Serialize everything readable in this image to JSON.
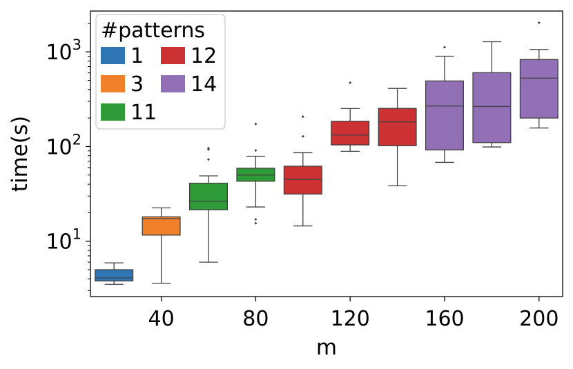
{
  "chart_data": {
    "type": "boxplot",
    "title": "",
    "xlabel": "m",
    "ylabel": "time(s)",
    "yscale": "log",
    "ylim": [
      2.6,
      2700
    ],
    "yticks": [
      {
        "value": 10,
        "base": "10",
        "exp": "1"
      },
      {
        "value": 100,
        "base": "10",
        "exp": "2"
      },
      {
        "value": 1000,
        "base": "10",
        "exp": "3"
      }
    ],
    "categories": [
      "20",
      "40",
      "60",
      "80",
      "100",
      "120",
      "140",
      "160",
      "180",
      "200"
    ],
    "xtick_labels": [
      {
        "category_index": 1,
        "label": "40"
      },
      {
        "category_index": 3,
        "label": "80"
      },
      {
        "category_index": 5,
        "label": "120"
      },
      {
        "category_index": 7,
        "label": "160"
      },
      {
        "category_index": 9,
        "label": "200"
      }
    ],
    "legend": {
      "title": "#patterns",
      "location": "upper-left",
      "entries": [
        {
          "label": "1",
          "color": "#2f77b4"
        },
        {
          "label": "3",
          "color": "#f0802a"
        },
        {
          "label": "11",
          "color": "#2f9a38"
        },
        {
          "label": "12",
          "color": "#cc3133"
        },
        {
          "label": "14",
          "color": "#9270b6"
        }
      ]
    },
    "boxes": [
      {
        "m": 20,
        "patterns": "1",
        "color": "#2f77b4",
        "whislo": 3.5,
        "q1": 3.8,
        "med": 4.1,
        "q3": 5.0,
        "whishi": 5.9,
        "fliers": []
      },
      {
        "m": 40,
        "patterns": "3",
        "color": "#f0802a",
        "whislo": 3.6,
        "q1": 11.6,
        "med": 17.3,
        "q3": 18.1,
        "whishi": 22.5,
        "fliers": []
      },
      {
        "m": 60,
        "patterns": "11",
        "color": "#2f9a38",
        "whislo": 6.0,
        "q1": 21.5,
        "med": 26.5,
        "q3": 41.0,
        "whishi": 49.0,
        "fliers": [
          73,
          93,
          96
        ]
      },
      {
        "m": 80,
        "patterns": "11",
        "color": "#2f9a38",
        "whislo": 23.0,
        "q1": 43.0,
        "med": 50.0,
        "q3": 59.0,
        "whishi": 79.0,
        "fliers": [
          15.5,
          17.0,
          91.0,
          173.0
        ]
      },
      {
        "m": 100,
        "patterns": "12",
        "color": "#cc3133",
        "whislo": 14.5,
        "q1": 31.5,
        "med": 45.0,
        "q3": 62.0,
        "whishi": 86.0,
        "fliers": [
          128.0,
          207.0
        ]
      },
      {
        "m": 120,
        "patterns": "12",
        "color": "#cc3133",
        "whislo": 89.0,
        "q1": 104.0,
        "med": 132.0,
        "q3": 185.0,
        "whishi": 252.0,
        "fliers": [
          472.0
        ]
      },
      {
        "m": 140,
        "patterns": "12",
        "color": "#cc3133",
        "whislo": 38.5,
        "q1": 102.0,
        "med": 182.0,
        "q3": 253.0,
        "whishi": 411.0,
        "fliers": []
      },
      {
        "m": 160,
        "patterns": "14",
        "color": "#9270b6",
        "whislo": 68.0,
        "q1": 92.0,
        "med": 268.0,
        "q3": 493.0,
        "whishi": 900.0,
        "fliers": [
          1120.0
        ]
      },
      {
        "m": 180,
        "patterns": "14",
        "color": "#9270b6",
        "whislo": 99.0,
        "q1": 110.0,
        "med": 265.0,
        "q3": 603.0,
        "whishi": 1280.0,
        "fliers": []
      },
      {
        "m": 200,
        "patterns": "14",
        "color": "#9270b6",
        "whislo": 157.0,
        "q1": 200.0,
        "med": 528.0,
        "q3": 830.0,
        "whishi": 1060.0,
        "fliers": [
          2030.0
        ]
      }
    ]
  }
}
